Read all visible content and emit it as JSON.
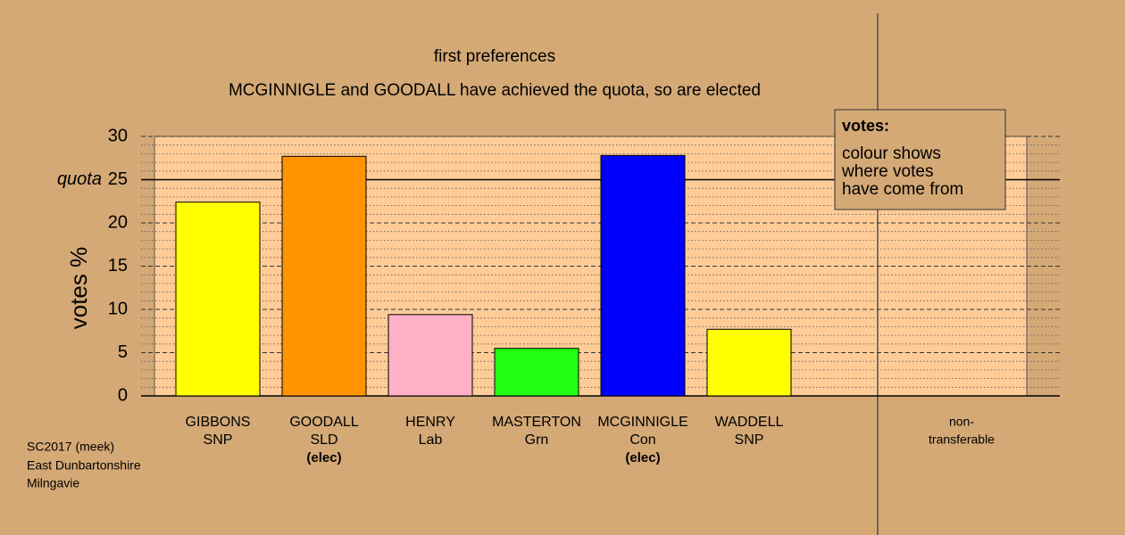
{
  "chart_data": {
    "type": "bar",
    "title": "first preferences",
    "subtitle": "MCGINNIGLE and GOODALL have achieved the quota, so are elected",
    "y_label": "votes %",
    "categories": [
      "GIBBONS",
      "GOODALL",
      "HENRY",
      "MASTERTON",
      "MCGINNIGLE",
      "WADDELL",
      "non-"
    ],
    "parties": [
      "SNP",
      "SLD",
      "Lab",
      "Grn",
      "Con",
      "SNP",
      "transferable"
    ],
    "notes": [
      null,
      "(elec)",
      null,
      null,
      "(elec)",
      null,
      null
    ],
    "values": [
      22.4,
      27.7,
      9.4,
      5.5,
      27.8,
      7.7,
      0
    ],
    "colors": [
      "#ffff00",
      "#ff9300",
      "#ffb0c6",
      "#22ff10",
      "#0000ff",
      "#ffff00",
      "#d4a976"
    ],
    "ylim": [
      0,
      30
    ],
    "yticks": [
      0,
      5,
      10,
      15,
      20,
      25,
      30
    ],
    "y_minor_grid": [
      1,
      2,
      3,
      4,
      6,
      7,
      8,
      9,
      11,
      12,
      13,
      14,
      16,
      17,
      18,
      19,
      21,
      22,
      23,
      24,
      26,
      27,
      28,
      29
    ],
    "quota": 25,
    "quota_label": "quota",
    "grid": true,
    "legend": {
      "title": "votes:",
      "lines": [
        "colour shows",
        "where votes",
        "have come from"
      ]
    },
    "footer": [
      "SC2017 (meek)",
      "East Dunbartonshire",
      "Milngavie"
    ]
  }
}
